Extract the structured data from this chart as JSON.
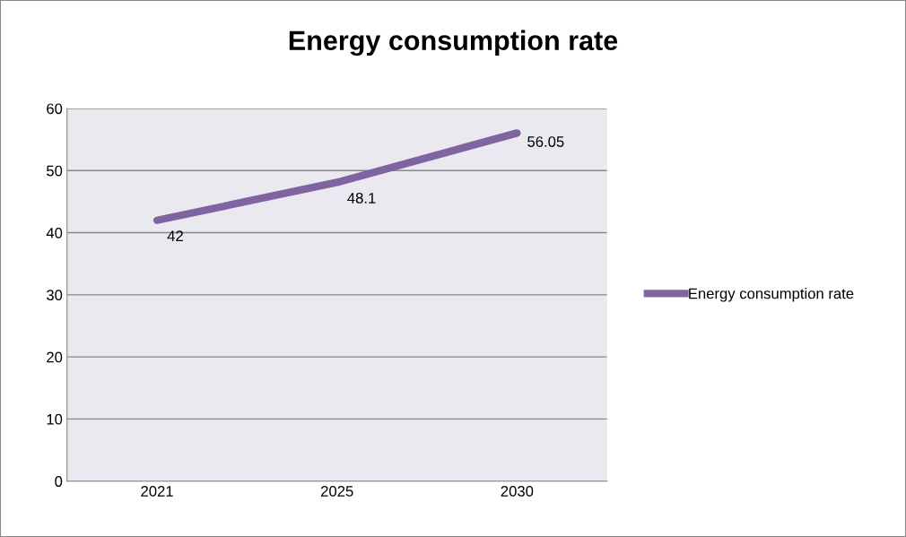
{
  "chart_data": {
    "type": "line",
    "title": "Energy consumption rate",
    "categories": [
      "2021",
      "2025",
      "2030"
    ],
    "series": [
      {
        "name": "Energy consumption rate",
        "color": "#8064a2",
        "values": [
          42,
          48.1,
          56.05
        ]
      }
    ],
    "ylim": [
      0,
      60
    ],
    "yticks": [
      0,
      10,
      20,
      30,
      40,
      50,
      60
    ],
    "grid": "y",
    "legend": "right",
    "data_labels": true,
    "marker": "none",
    "line_style": "solid"
  }
}
